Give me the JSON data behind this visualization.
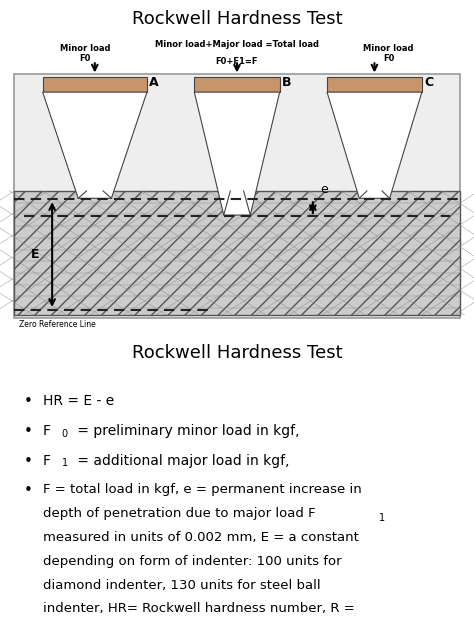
{
  "title1": "Rockwell Hardness Test",
  "title2": "Rockwell Hardness Test",
  "indenter_brown": "#c8956a",
  "indenter_edge": "#444444",
  "material_fill": "#d8d8d8",
  "diagram_bg": "#eeeeee",
  "diagram_border": "#999999",
  "dashed_color": "#222222",
  "arrow_color": "#111111",
  "label_A": "A",
  "label_B": "B",
  "label_C": "C",
  "label_E": "E",
  "label_e": "e",
  "text_minor_load_left": "Minor load\nF0",
  "text_minor_load_right": "Minor load\nF0",
  "text_center_top": "Minor load+Major load =Total load",
  "text_center_bot": "F0+F1=F",
  "text_zero_ref": "Zero Reference Line",
  "bullet1": "HR = E - e",
  "bullet2_pre": "F",
  "bullet2_sub": "0",
  "bullet2_post": " = preliminary minor load in kgf,",
  "bullet3_pre": "F",
  "bullet3_sub": "1",
  "bullet3_post": " = additional major load in kgf,",
  "bullet4": "F = total load in kgf, e = permanent increase in\ndepth of penetration due to major load F",
  "bullet4_sub": "1",
  "bullet4_cont": "\nmeasured in units of 0.002 mm, E = a constant\ndepending on form of indenter: 100 units for\ndiamond indenter, 130 units for steel ball\nindenter, HR= Rockwell hardness number, R ="
}
